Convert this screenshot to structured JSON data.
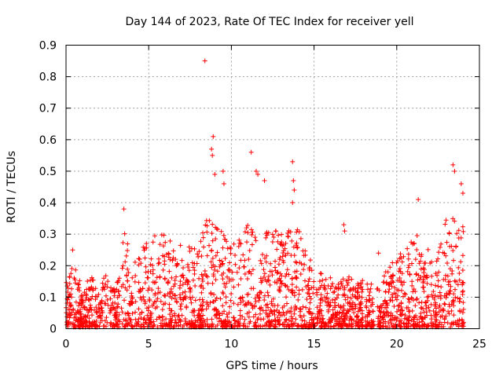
{
  "chart_data": {
    "type": "scatter",
    "title": "Day 144 of 2023, Rate Of TEC Index for receiver yell",
    "xlabel": "GPS time / hours",
    "ylabel": "ROTI / TECUs",
    "xlim": [
      0,
      25
    ],
    "ylim": [
      0,
      0.9
    ],
    "x_ticks": [
      0,
      5,
      10,
      15,
      20,
      25
    ],
    "x_tick_labels": [
      "0",
      "5",
      "10",
      "15",
      "20",
      "25"
    ],
    "y_ticks": [
      0,
      0.1,
      0.2,
      0.3,
      0.4,
      0.5,
      0.6,
      0.7,
      0.8,
      0.9
    ],
    "y_tick_labels": [
      "0",
      "0.1",
      "0.2",
      "0.3",
      "0.4",
      "0.5",
      "0.6",
      "0.7",
      "0.8",
      "0.9"
    ],
    "grid": true,
    "marker": "+",
    "series_color": "#ff0000",
    "series": [
      {
        "name": "ROTI",
        "notable_points": [
          {
            "x": 8.4,
            "y": 0.85
          },
          {
            "x": 8.9,
            "y": 0.61
          },
          {
            "x": 8.8,
            "y": 0.57
          },
          {
            "x": 8.85,
            "y": 0.55
          },
          {
            "x": 9.0,
            "y": 0.49
          },
          {
            "x": 9.5,
            "y": 0.5
          },
          {
            "x": 9.55,
            "y": 0.46
          },
          {
            "x": 11.2,
            "y": 0.56
          },
          {
            "x": 11.5,
            "y": 0.5
          },
          {
            "x": 11.6,
            "y": 0.49
          },
          {
            "x": 12.0,
            "y": 0.47
          },
          {
            "x": 13.7,
            "y": 0.53
          },
          {
            "x": 13.75,
            "y": 0.47
          },
          {
            "x": 13.8,
            "y": 0.44
          },
          {
            "x": 13.7,
            "y": 0.4
          },
          {
            "x": 23.4,
            "y": 0.52
          },
          {
            "x": 23.5,
            "y": 0.5
          },
          {
            "x": 23.9,
            "y": 0.46
          },
          {
            "x": 24.0,
            "y": 0.43
          },
          {
            "x": 21.3,
            "y": 0.41
          },
          {
            "x": 3.5,
            "y": 0.38
          },
          {
            "x": 16.8,
            "y": 0.33
          },
          {
            "x": 16.85,
            "y": 0.31
          },
          {
            "x": 0.4,
            "y": 0.25
          },
          {
            "x": 18.9,
            "y": 0.24
          }
        ],
        "envelope_hours": [
          0,
          0.5,
          1,
          1.5,
          2,
          2.5,
          3,
          3.5,
          4,
          4.5,
          5,
          5.5,
          6,
          6.5,
          7,
          7.5,
          8,
          8.5,
          9,
          9.5,
          10,
          10.5,
          11,
          11.5,
          12,
          12.5,
          13,
          13.5,
          14,
          14.5,
          15,
          15.5,
          16,
          16.5,
          17,
          17.5,
          18,
          18.5,
          19,
          19.5,
          20,
          20.5,
          21,
          21.5,
          22,
          22.5,
          23,
          23.5,
          24
        ],
        "envelope_typical_max": [
          0.16,
          0.2,
          0.12,
          0.17,
          0.1,
          0.21,
          0.12,
          0.36,
          0.18,
          0.26,
          0.28,
          0.3,
          0.3,
          0.27,
          0.26,
          0.3,
          0.24,
          0.35,
          0.32,
          0.3,
          0.26,
          0.3,
          0.34,
          0.33,
          0.3,
          0.31,
          0.3,
          0.31,
          0.34,
          0.26,
          0.18,
          0.17,
          0.16,
          0.14,
          0.17,
          0.15,
          0.15,
          0.14,
          0.13,
          0.2,
          0.22,
          0.27,
          0.3,
          0.28,
          0.24,
          0.25,
          0.35,
          0.38,
          0.33
        ]
      }
    ]
  }
}
